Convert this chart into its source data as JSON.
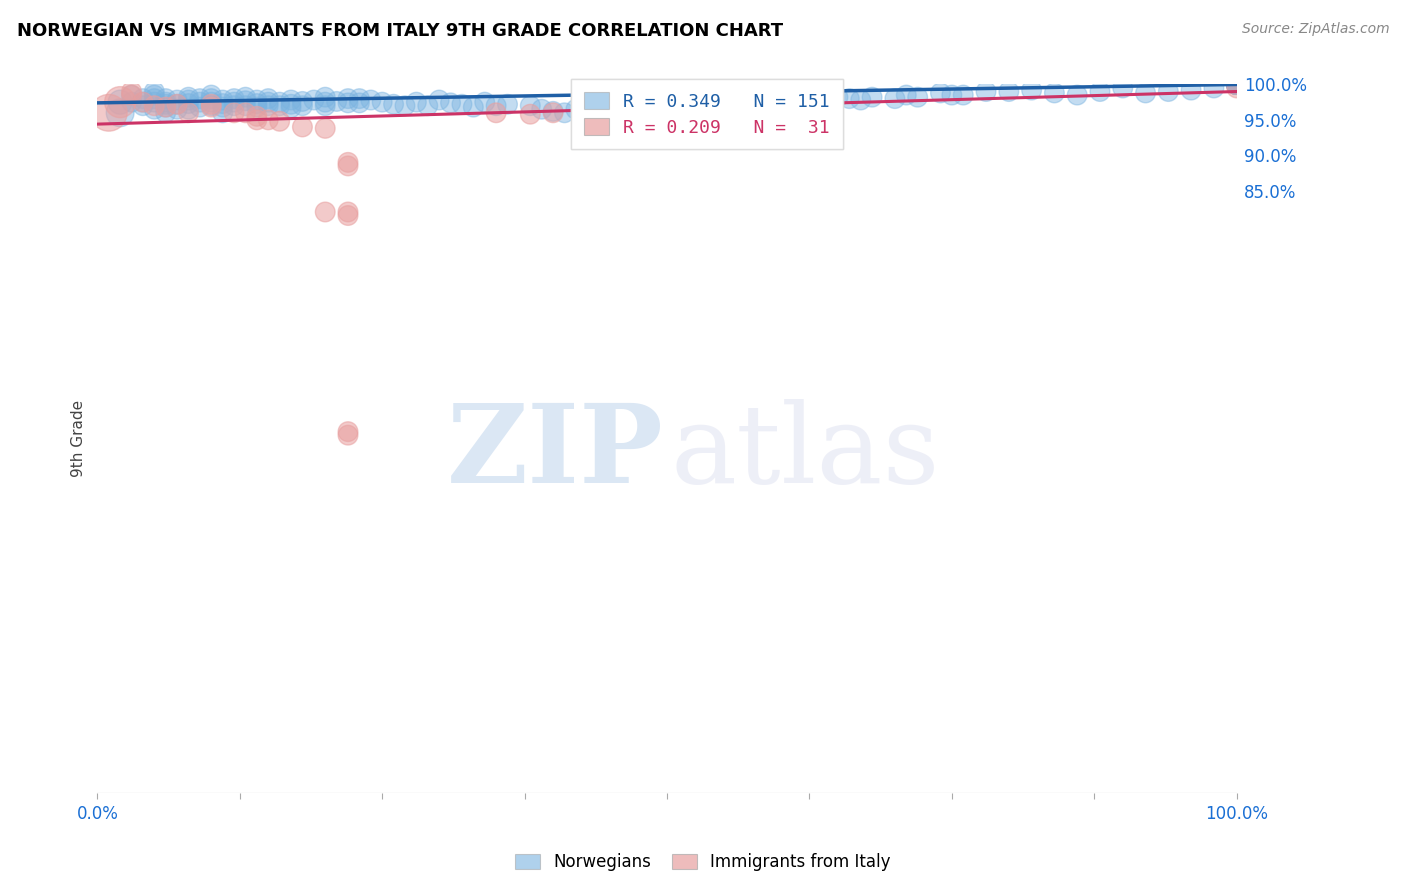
{
  "title": "NORWEGIAN VS IMMIGRANTS FROM ITALY 9TH GRADE CORRELATION CHART",
  "source": "Source: ZipAtlas.com",
  "ylabel": "9th Grade",
  "xlim": [
    0.0,
    1.0
  ],
  "ylim": [
    0.0,
    1.0
  ],
  "y_tick_labels_right": [
    "100.0%",
    "95.0%",
    "90.0%",
    "85.0%"
  ],
  "y_tick_positions_right": [
    1.0,
    0.95,
    0.9,
    0.85
  ],
  "legend_blue_label": "Norwegians",
  "legend_pink_label": "Immigrants from Italy",
  "blue_R": 0.349,
  "blue_N": 151,
  "pink_R": 0.209,
  "pink_N": 31,
  "blue_color": "#7ab3e0",
  "pink_color": "#e8a0a0",
  "blue_line_color": "#1f5fa6",
  "pink_line_color": "#cc3366",
  "background_color": "#ffffff",
  "grid_color": "#cccccc",
  "blue_line_x": [
    0.0,
    1.0
  ],
  "blue_line_y": [
    0.974,
    1.0
  ],
  "pink_line_x": [
    0.0,
    1.0
  ],
  "pink_line_y": [
    0.944,
    0.99
  ],
  "blue_scatter_x": [
    0.02,
    0.02,
    0.03,
    0.03,
    0.04,
    0.04,
    0.04,
    0.05,
    0.05,
    0.05,
    0.05,
    0.05,
    0.06,
    0.06,
    0.06,
    0.06,
    0.06,
    0.07,
    0.07,
    0.07,
    0.08,
    0.08,
    0.08,
    0.08,
    0.09,
    0.09,
    0.09,
    0.1,
    0.1,
    0.1,
    0.1,
    0.11,
    0.11,
    0.11,
    0.11,
    0.12,
    0.12,
    0.12,
    0.13,
    0.13,
    0.13,
    0.14,
    0.14,
    0.14,
    0.15,
    0.15,
    0.15,
    0.16,
    0.16,
    0.17,
    0.17,
    0.17,
    0.18,
    0.18,
    0.19,
    0.2,
    0.2,
    0.2,
    0.21,
    0.22,
    0.22,
    0.23,
    0.23,
    0.24,
    0.25,
    0.26,
    0.27,
    0.28,
    0.29,
    0.3,
    0.31,
    0.32,
    0.33,
    0.34,
    0.35,
    0.36,
    0.38,
    0.39,
    0.4,
    0.41,
    0.42,
    0.43,
    0.44,
    0.45,
    0.46,
    0.47,
    0.48,
    0.5,
    0.51,
    0.52,
    0.53,
    0.55,
    0.56,
    0.57,
    0.58,
    0.59,
    0.6,
    0.6,
    0.61,
    0.62,
    0.63,
    0.64,
    0.65,
    0.66,
    0.67,
    0.68,
    0.7,
    0.71,
    0.72,
    0.74,
    0.75,
    0.76,
    0.78,
    0.8,
    0.82,
    0.84,
    0.86,
    0.88,
    0.9,
    0.92,
    0.94,
    0.96,
    0.98,
    1.0,
    1.0,
    1.0,
    1.0,
    1.0,
    1.0,
    1.0,
    1.0,
    1.0,
    1.0,
    1.0,
    1.0,
    1.0,
    1.0,
    1.0,
    1.0,
    1.0,
    1.0,
    1.0,
    1.0,
    1.0,
    1.0,
    1.0,
    1.0,
    1.0,
    1.0,
    1.0,
    1.0
  ],
  "blue_scatter_y": [
    0.975,
    0.96,
    0.985,
    0.975,
    0.98,
    0.975,
    0.97,
    0.99,
    0.985,
    0.98,
    0.975,
    0.965,
    0.98,
    0.975,
    0.972,
    0.968,
    0.96,
    0.978,
    0.972,
    0.965,
    0.982,
    0.978,
    0.973,
    0.965,
    0.98,
    0.975,
    0.968,
    0.985,
    0.98,
    0.975,
    0.97,
    0.978,
    0.973,
    0.968,
    0.96,
    0.98,
    0.975,
    0.97,
    0.982,
    0.977,
    0.97,
    0.978,
    0.973,
    0.968,
    0.98,
    0.975,
    0.97,
    0.975,
    0.97,
    0.978,
    0.972,
    0.967,
    0.976,
    0.97,
    0.978,
    0.982,
    0.975,
    0.97,
    0.976,
    0.98,
    0.974,
    0.98,
    0.974,
    0.978,
    0.975,
    0.972,
    0.97,
    0.975,
    0.97,
    0.978,
    0.974,
    0.972,
    0.968,
    0.975,
    0.97,
    0.972,
    0.97,
    0.965,
    0.962,
    0.96,
    0.965,
    0.958,
    0.97,
    0.975,
    0.968,
    0.972,
    0.965,
    0.978,
    0.974,
    0.97,
    0.968,
    0.978,
    0.972,
    0.97,
    0.975,
    0.968,
    0.985,
    0.975,
    0.978,
    0.982,
    0.978,
    0.975,
    0.982,
    0.98,
    0.978,
    0.982,
    0.98,
    0.985,
    0.982,
    0.988,
    0.985,
    0.985,
    0.99,
    0.99,
    0.992,
    0.988,
    0.985,
    0.99,
    0.995,
    0.988,
    0.99,
    0.992,
    0.995,
    1.0,
    1.0,
    1.0,
    1.0,
    1.0,
    1.0,
    1.0,
    1.0,
    1.0,
    1.0,
    1.0,
    1.0,
    1.0,
    1.0,
    1.0,
    1.0,
    1.0,
    1.0,
    1.0,
    1.0,
    1.0,
    1.0,
    1.0,
    1.0,
    1.0,
    1.0,
    1.0,
    1.0
  ],
  "pink_scatter_x": [
    0.01,
    0.02,
    0.03,
    0.03,
    0.04,
    0.05,
    0.06,
    0.07,
    0.08,
    0.1,
    0.1,
    0.12,
    0.13,
    0.14,
    0.14,
    0.15,
    0.16,
    0.18,
    0.2,
    0.2,
    0.22,
    0.22,
    0.22,
    0.22,
    0.22,
    0.22,
    0.35,
    0.38,
    0.4,
    0.43,
    1.0
  ],
  "pink_scatter_y": [
    0.96,
    0.975,
    0.99,
    0.985,
    0.975,
    0.97,
    0.968,
    0.972,
    0.96,
    0.972,
    0.968,
    0.96,
    0.96,
    0.955,
    0.95,
    0.95,
    0.948,
    0.94,
    0.938,
    0.82,
    0.89,
    0.885,
    0.82,
    0.815,
    0.51,
    0.505,
    0.96,
    0.958,
    0.96,
    0.96,
    0.995
  ]
}
